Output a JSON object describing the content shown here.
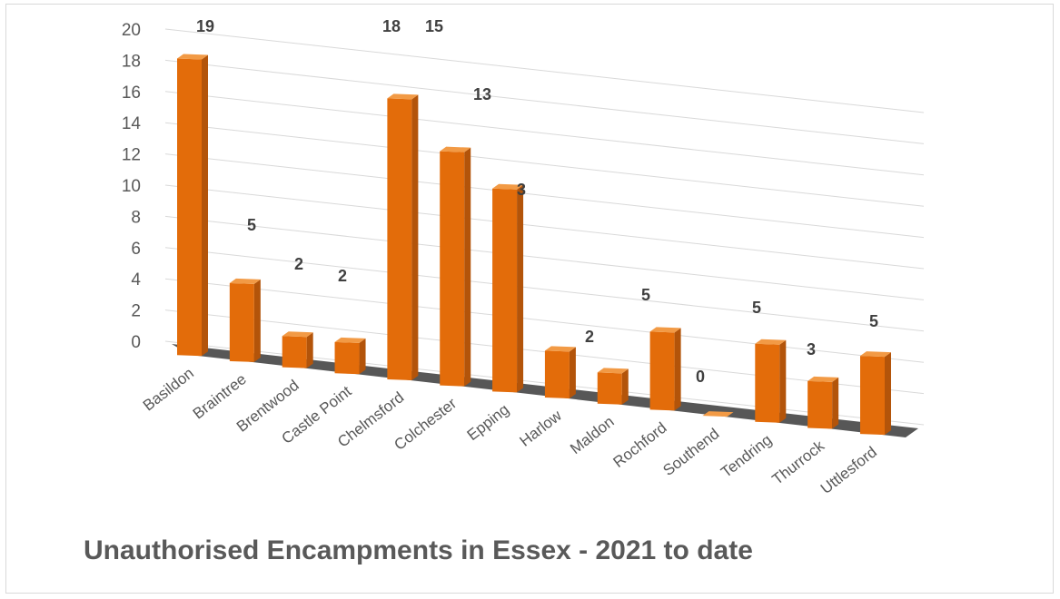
{
  "chart_data": {
    "type": "bar",
    "style": "3d-column",
    "title": "Unauthorised Encampments in Essex - 2021 to date",
    "categories": [
      "Basildon",
      "Braintree",
      "Brentwood",
      "Castle Point",
      "Chelmsford",
      "Colchester",
      "Epping",
      "Harlow",
      "Maldon",
      "Rochford",
      "Southend",
      "Tendring",
      "Thurrock",
      "Uttlesford"
    ],
    "values": [
      19,
      5,
      2,
      2,
      18,
      15,
      13,
      3,
      2,
      5,
      0,
      5,
      3,
      5
    ],
    "ylim": [
      0,
      20
    ],
    "yticks": [
      0,
      2,
      4,
      6,
      8,
      10,
      12,
      14,
      16,
      18,
      20
    ],
    "grid": true,
    "legend": "none",
    "colors": {
      "bar_front": "#e36c0a",
      "bar_side": "#b3540a",
      "bar_top": "#f29a45",
      "floor": "#3a3a3a",
      "grid": "#d9d9d9"
    }
  }
}
